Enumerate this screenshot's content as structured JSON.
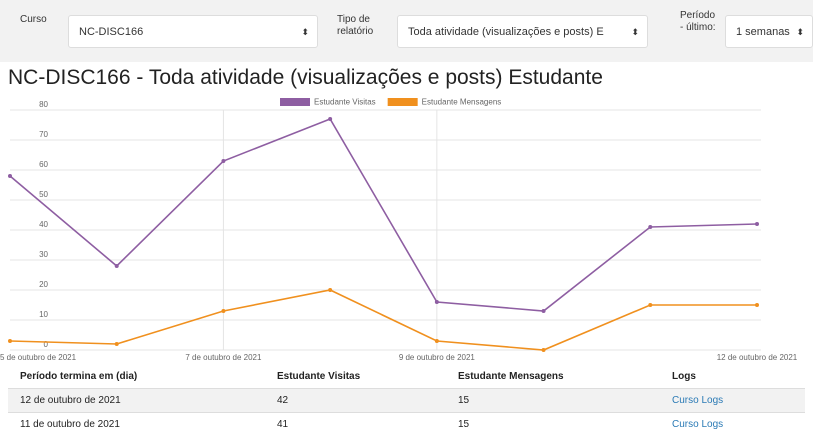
{
  "form": {
    "course_label": "Curso",
    "course_value": "NC-DISC166",
    "report_label": "Tipo de relatório",
    "report_value": "Toda atividade (visualizações e posts) E",
    "period_label": "Período - último:",
    "period_value": "1 semanas"
  },
  "chart_data": {
    "type": "line",
    "title": "NC-DISC166 - Toda atividade (visualizações e posts) Estudante",
    "categories": [
      "5 de outubro de 2021",
      null,
      "7 de outubro de 2021",
      null,
      "9 de outubro de 2021",
      null,
      null,
      "12 de outubro de 2021"
    ],
    "series": [
      {
        "name": "Estudante Visitas",
        "color": "#8e5ea2",
        "values": [
          58,
          28,
          63,
          77,
          16,
          13,
          41,
          42
        ]
      },
      {
        "name": "Estudante Mensagens",
        "color": "#f0901e",
        "values": [
          3,
          2,
          13,
          20,
          3,
          0,
          15,
          15
        ]
      }
    ],
    "ylim": [
      0,
      80
    ],
    "yticks": [
      0,
      10,
      20,
      30,
      40,
      50,
      60,
      70,
      80
    ],
    "grid": true,
    "legend": "top"
  },
  "table": {
    "header": [
      "Período termina em (dia)",
      "Estudante Visitas",
      "Estudante Mensagens",
      "Logs"
    ],
    "rows": [
      [
        "12 de outubro de 2021",
        42,
        15,
        "Curso Logs"
      ],
      [
        "11 de outubro de 2021",
        41,
        15,
        "Curso Logs"
      ]
    ]
  }
}
